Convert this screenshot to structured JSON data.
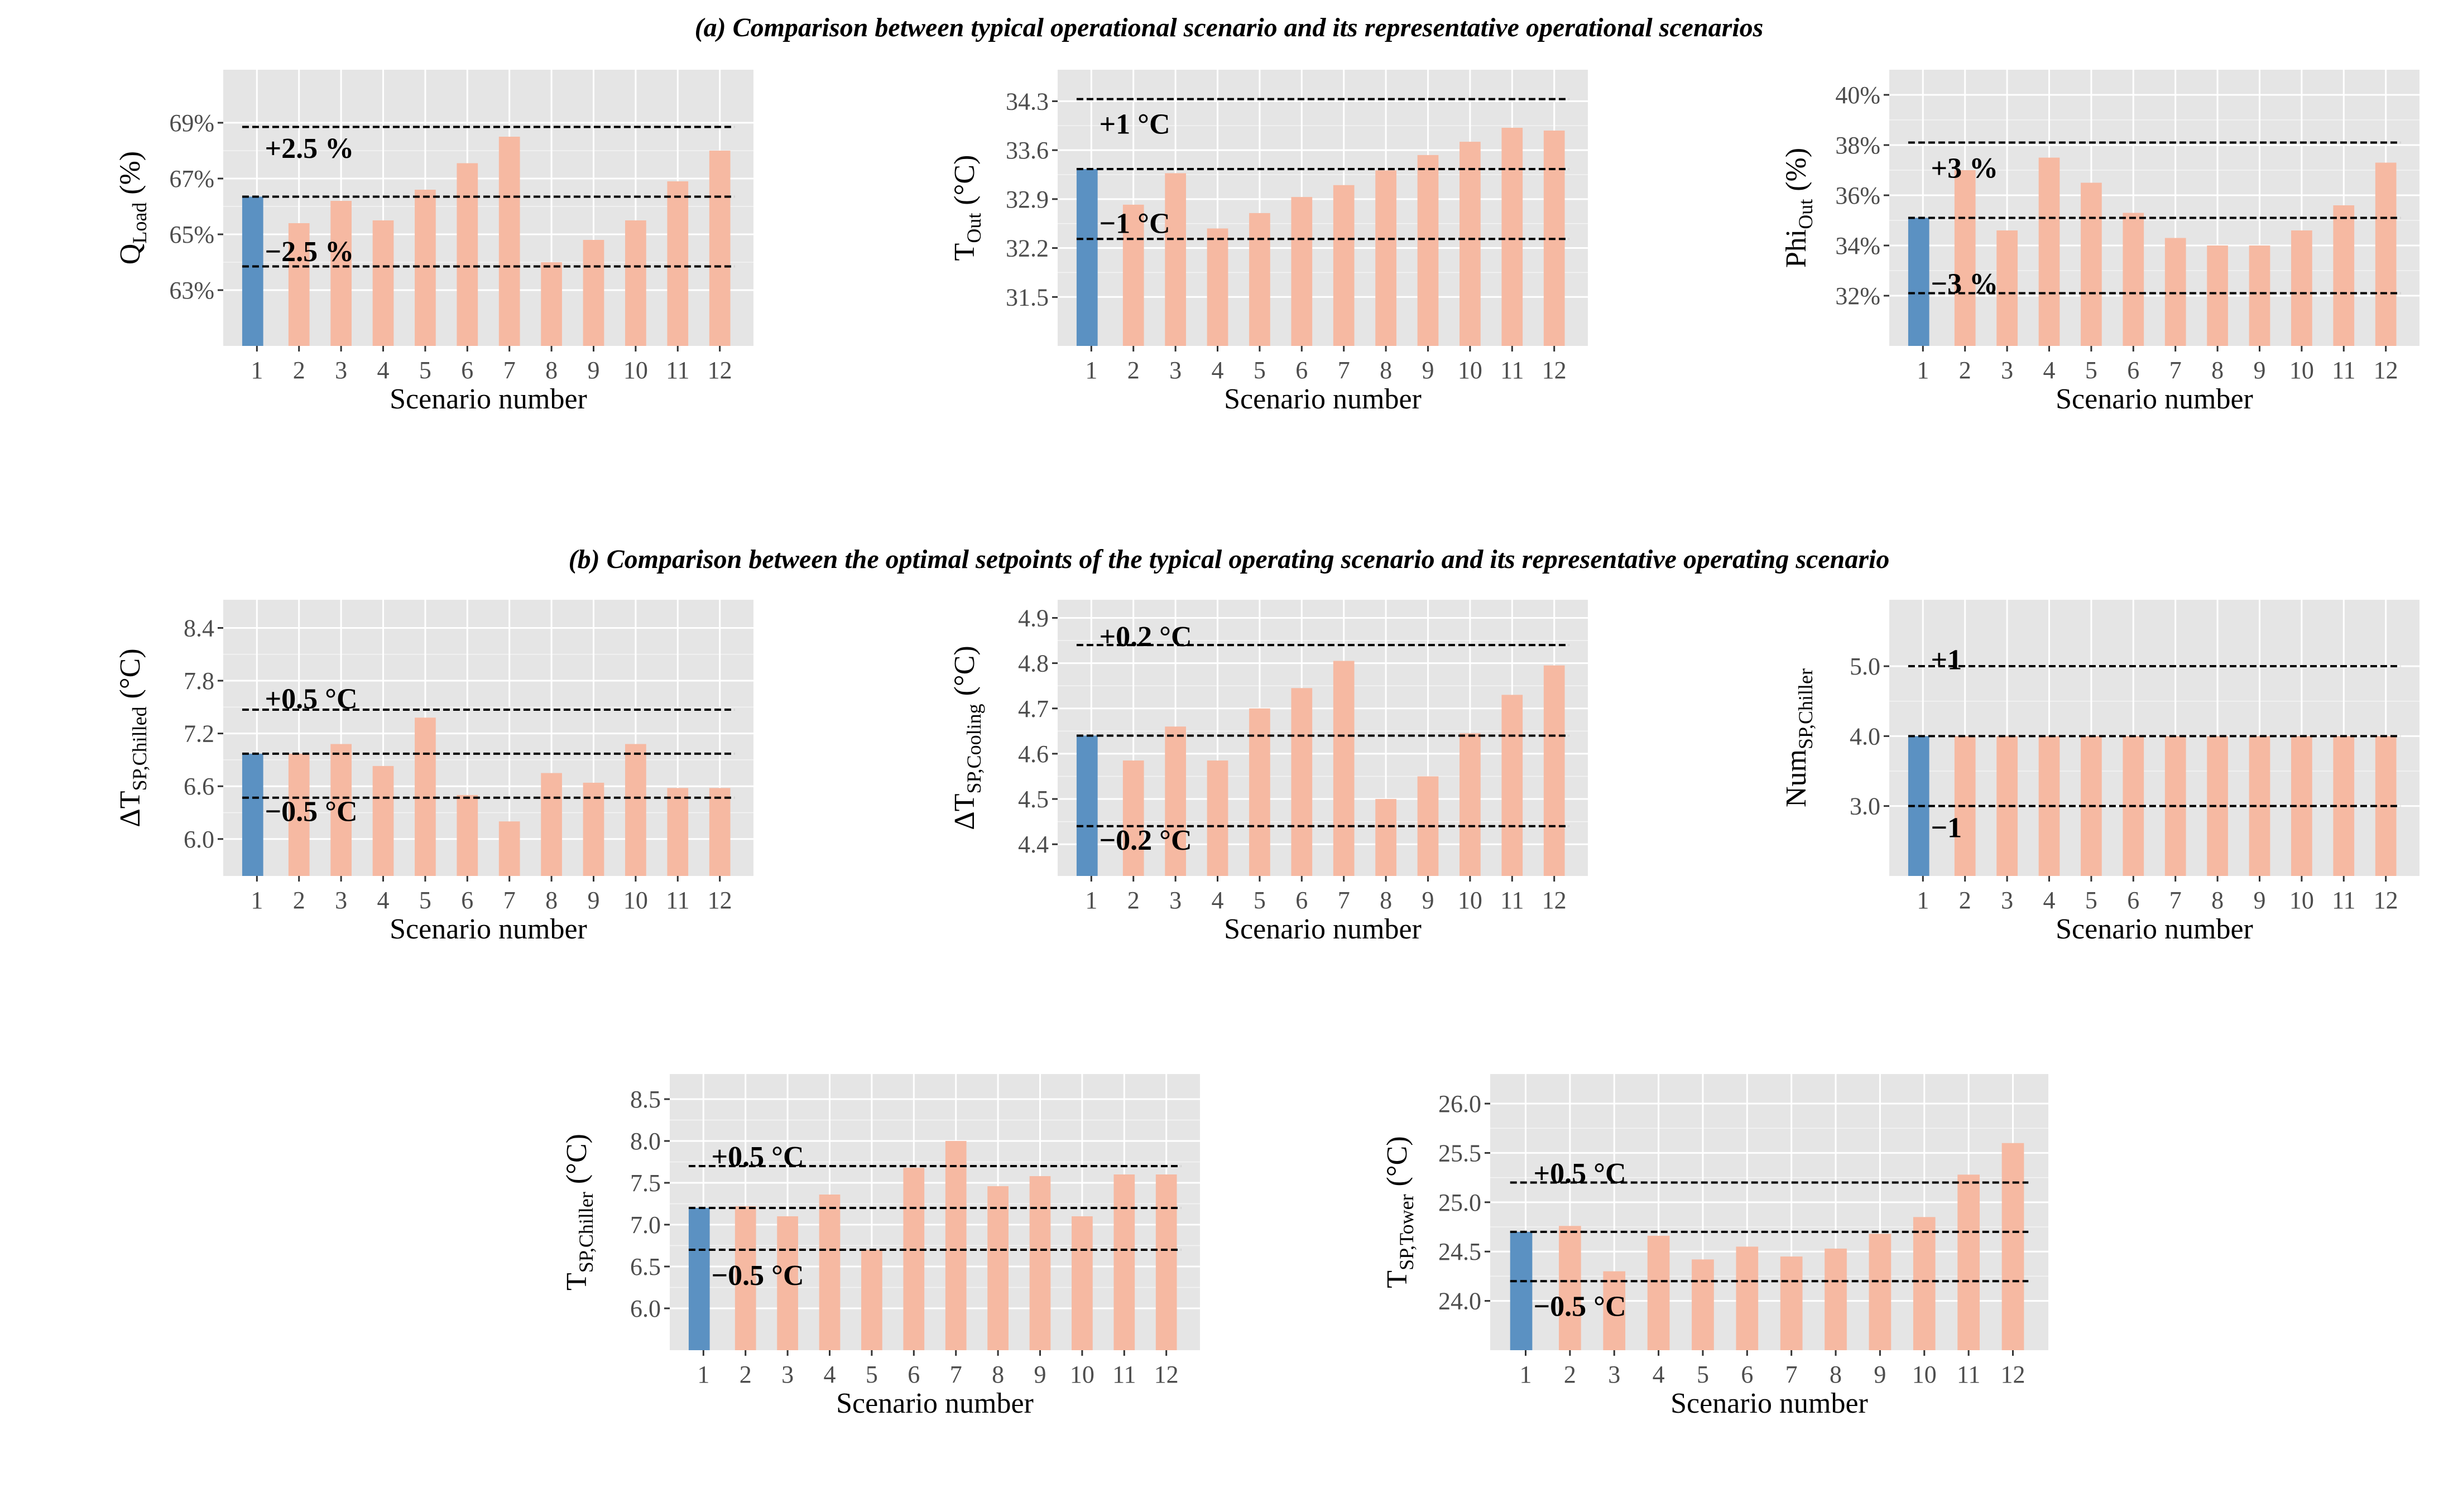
{
  "titles": {
    "a": "(a) Comparison between typical operational scenario and its representative operational scenarios",
    "b": "(b) Comparison between the optimal setpoints of the typical operating scenario and its representative operating scenario"
  },
  "colors": {
    "typical": "#5b91c2",
    "representative": "#f6b9a2",
    "panel_bg": "#e5e5e5",
    "grid": "#ffffff",
    "reference_line": "#000000"
  },
  "chart_data": [
    {
      "id": "q-load",
      "type": "bar",
      "section": "a",
      "categories": [
        "1",
        "2",
        "3",
        "4",
        "5",
        "6",
        "7",
        "8",
        "9",
        "10",
        "11",
        "12"
      ],
      "values": [
        66.35,
        65.4,
        66.2,
        65.5,
        66.6,
        67.55,
        68.5,
        64.0,
        64.8,
        65.5,
        66.9,
        68.0
      ],
      "ylim": [
        61.0,
        70.9
      ],
      "yticks": [
        63,
        65,
        67,
        69
      ],
      "ytick_labels": [
        "63%",
        "65%",
        "67%",
        "69%"
      ],
      "xlabel": "Scenario number",
      "ylabel": "Q",
      "ylabel_sub": "Load",
      "ylabel_unit": "(%)",
      "reference_lines": [
        68.85,
        66.35,
        63.85
      ],
      "annotations": [
        {
          "text": "+2.5 %",
          "x": 1.2,
          "y": 68.1
        },
        {
          "text": "−2.5 %",
          "x": 1.2,
          "y": 64.4
        }
      ]
    },
    {
      "id": "t-out",
      "type": "bar",
      "section": "a",
      "categories": [
        "1",
        "2",
        "3",
        "4",
        "5",
        "6",
        "7",
        "8",
        "9",
        "10",
        "11",
        "12"
      ],
      "values": [
        33.33,
        32.82,
        33.27,
        32.48,
        32.7,
        32.93,
        33.1,
        33.31,
        33.53,
        33.72,
        33.92,
        33.88
      ],
      "ylim": [
        30.8,
        34.75
      ],
      "yticks": [
        31.5,
        32.2,
        32.9,
        33.6,
        34.3
      ],
      "ytick_labels": [
        "31.5",
        "32.2",
        "32.9",
        "33.6",
        "34.3"
      ],
      "xlabel": "Scenario number",
      "ylabel": "T",
      "ylabel_sub": "Out",
      "ylabel_unit": "(°C)",
      "reference_lines": [
        34.33,
        33.33,
        32.33
      ],
      "annotations": [
        {
          "text": "+1 °C",
          "x": 1.2,
          "y": 33.98
        },
        {
          "text": "−1 °C",
          "x": 1.2,
          "y": 32.56
        }
      ]
    },
    {
      "id": "phi-out",
      "type": "bar",
      "section": "a",
      "categories": [
        "1",
        "2",
        "3",
        "4",
        "5",
        "6",
        "7",
        "8",
        "9",
        "10",
        "11",
        "12"
      ],
      "values": [
        35.1,
        37.0,
        34.6,
        37.5,
        36.5,
        35.3,
        34.3,
        34.0,
        34.0,
        34.6,
        35.6,
        37.3
      ],
      "ylim": [
        30.0,
        41.0
      ],
      "yticks": [
        32,
        34,
        36,
        38,
        40
      ],
      "ytick_labels": [
        "32%",
        "34%",
        "36%",
        "38%",
        "40%"
      ],
      "xlabel": "Scenario number",
      "ylabel": "Phi",
      "ylabel_sub": "Out",
      "ylabel_unit": "(%)",
      "reference_lines": [
        38.1,
        35.1,
        32.1
      ],
      "annotations": [
        {
          "text": "+3 %",
          "x": 1.2,
          "y": 37.1
        },
        {
          "text": "−3 %",
          "x": 1.2,
          "y": 32.5
        }
      ]
    },
    {
      "id": "dt-sp-chilled",
      "type": "bar",
      "section": "b",
      "categories": [
        "1",
        "2",
        "3",
        "4",
        "5",
        "6",
        "7",
        "8",
        "9",
        "10",
        "11",
        "12"
      ],
      "values": [
        6.97,
        6.97,
        7.08,
        6.83,
        7.38,
        6.5,
        6.2,
        6.75,
        6.64,
        7.08,
        6.58,
        6.58
      ],
      "ylim": [
        5.58,
        8.72
      ],
      "yticks": [
        6.0,
        6.6,
        7.2,
        7.8,
        8.4
      ],
      "ytick_labels": [
        "6.0",
        "6.6",
        "7.2",
        "7.8",
        "8.4"
      ],
      "xlabel": "Scenario number",
      "ylabel": "ΔT",
      "ylabel_sub": "SP,Chilled",
      "ylabel_unit": "(°C)",
      "reference_lines": [
        7.47,
        6.97,
        6.47
      ],
      "annotations": [
        {
          "text": "+0.5 °C",
          "x": 1.2,
          "y": 7.6
        },
        {
          "text": "−0.5 °C",
          "x": 1.2,
          "y": 6.32
        }
      ]
    },
    {
      "id": "dt-sp-cooling",
      "type": "bar",
      "section": "b",
      "categories": [
        "1",
        "2",
        "3",
        "4",
        "5",
        "6",
        "7",
        "8",
        "9",
        "10",
        "11",
        "12"
      ],
      "values": [
        4.64,
        4.585,
        4.66,
        4.585,
        4.7,
        4.745,
        4.805,
        4.5,
        4.55,
        4.645,
        4.73,
        4.795
      ],
      "ylim": [
        4.33,
        4.94
      ],
      "yticks": [
        4.4,
        4.5,
        4.6,
        4.7,
        4.8,
        4.9
      ],
      "ytick_labels": [
        "4.4",
        "4.5",
        "4.6",
        "4.7",
        "4.8",
        "4.9"
      ],
      "xlabel": "Scenario number",
      "ylabel": "ΔT",
      "ylabel_sub": "SP,Cooling",
      "ylabel_unit": "(°C)",
      "reference_lines": [
        4.84,
        4.64,
        4.44
      ],
      "annotations": [
        {
          "text": "+0.2 °C",
          "x": 1.2,
          "y": 4.86
        },
        {
          "text": "−0.2 °C",
          "x": 1.2,
          "y": 4.41
        }
      ]
    },
    {
      "id": "num-sp-chiller",
      "type": "bar",
      "section": "b",
      "categories": [
        "1",
        "2",
        "3",
        "4",
        "5",
        "6",
        "7",
        "8",
        "9",
        "10",
        "11",
        "12"
      ],
      "values": [
        4,
        4,
        4,
        4,
        4,
        4,
        4,
        4,
        4,
        4,
        4,
        4
      ],
      "ylim": [
        2.0,
        5.95
      ],
      "yticks": [
        3.0,
        4.0,
        5.0
      ],
      "ytick_labels": [
        "3.0",
        "4.0",
        "5.0"
      ],
      "xlabel": "Scenario number",
      "ylabel": "Num",
      "ylabel_sub": "SP,Chiller",
      "ylabel_unit": "",
      "reference_lines": [
        5.0,
        4.0,
        3.0
      ],
      "annotations": [
        {
          "text": "+1",
          "x": 1.2,
          "y": 5.1
        },
        {
          "text": "−1",
          "x": 1.2,
          "y": 2.7
        }
      ]
    },
    {
      "id": "t-sp-chiller",
      "type": "bar",
      "section": "b",
      "categories": [
        "1",
        "2",
        "3",
        "4",
        "5",
        "6",
        "7",
        "8",
        "9",
        "10",
        "11",
        "12"
      ],
      "values": [
        7.2,
        7.22,
        7.1,
        7.36,
        6.7,
        7.68,
        8.0,
        7.46,
        7.58,
        7.1,
        7.6,
        7.6
      ],
      "ylim": [
        5.5,
        8.8
      ],
      "yticks": [
        6.0,
        6.5,
        7.0,
        7.5,
        8.0,
        8.5
      ],
      "ytick_labels": [
        "6.0",
        "6.5",
        "7.0",
        "7.5",
        "8.0",
        "8.5"
      ],
      "xlabel": "Scenario number",
      "ylabel": "T",
      "ylabel_sub": "SP,Chiller",
      "ylabel_unit": "(°C)",
      "reference_lines": [
        7.7,
        7.2,
        6.7
      ],
      "annotations": [
        {
          "text": "+0.5 °C",
          "x": 1.2,
          "y": 7.82
        },
        {
          "text": "−0.5 °C",
          "x": 1.2,
          "y": 6.4
        }
      ]
    },
    {
      "id": "t-sp-tower",
      "type": "bar",
      "section": "b",
      "categories": [
        "1",
        "2",
        "3",
        "4",
        "5",
        "6",
        "7",
        "8",
        "9",
        "10",
        "11",
        "12"
      ],
      "values": [
        24.7,
        24.76,
        24.3,
        24.66,
        24.42,
        24.55,
        24.45,
        24.53,
        24.68,
        24.85,
        25.28,
        25.6
      ],
      "ylim": [
        23.5,
        26.3
      ],
      "yticks": [
        24.0,
        24.5,
        25.0,
        25.5,
        26.0
      ],
      "ytick_labels": [
        "24.0",
        "24.5",
        "25.0",
        "25.5",
        "26.0"
      ],
      "xlabel": "Scenario number",
      "ylabel": "T",
      "ylabel_sub": "SP,Tower",
      "ylabel_unit": "(°C)",
      "reference_lines": [
        25.2,
        24.7,
        24.2
      ],
      "annotations": [
        {
          "text": "+0.5 °C",
          "x": 1.2,
          "y": 25.3
        },
        {
          "text": "−0.5 °C",
          "x": 1.2,
          "y": 23.95
        }
      ]
    }
  ]
}
